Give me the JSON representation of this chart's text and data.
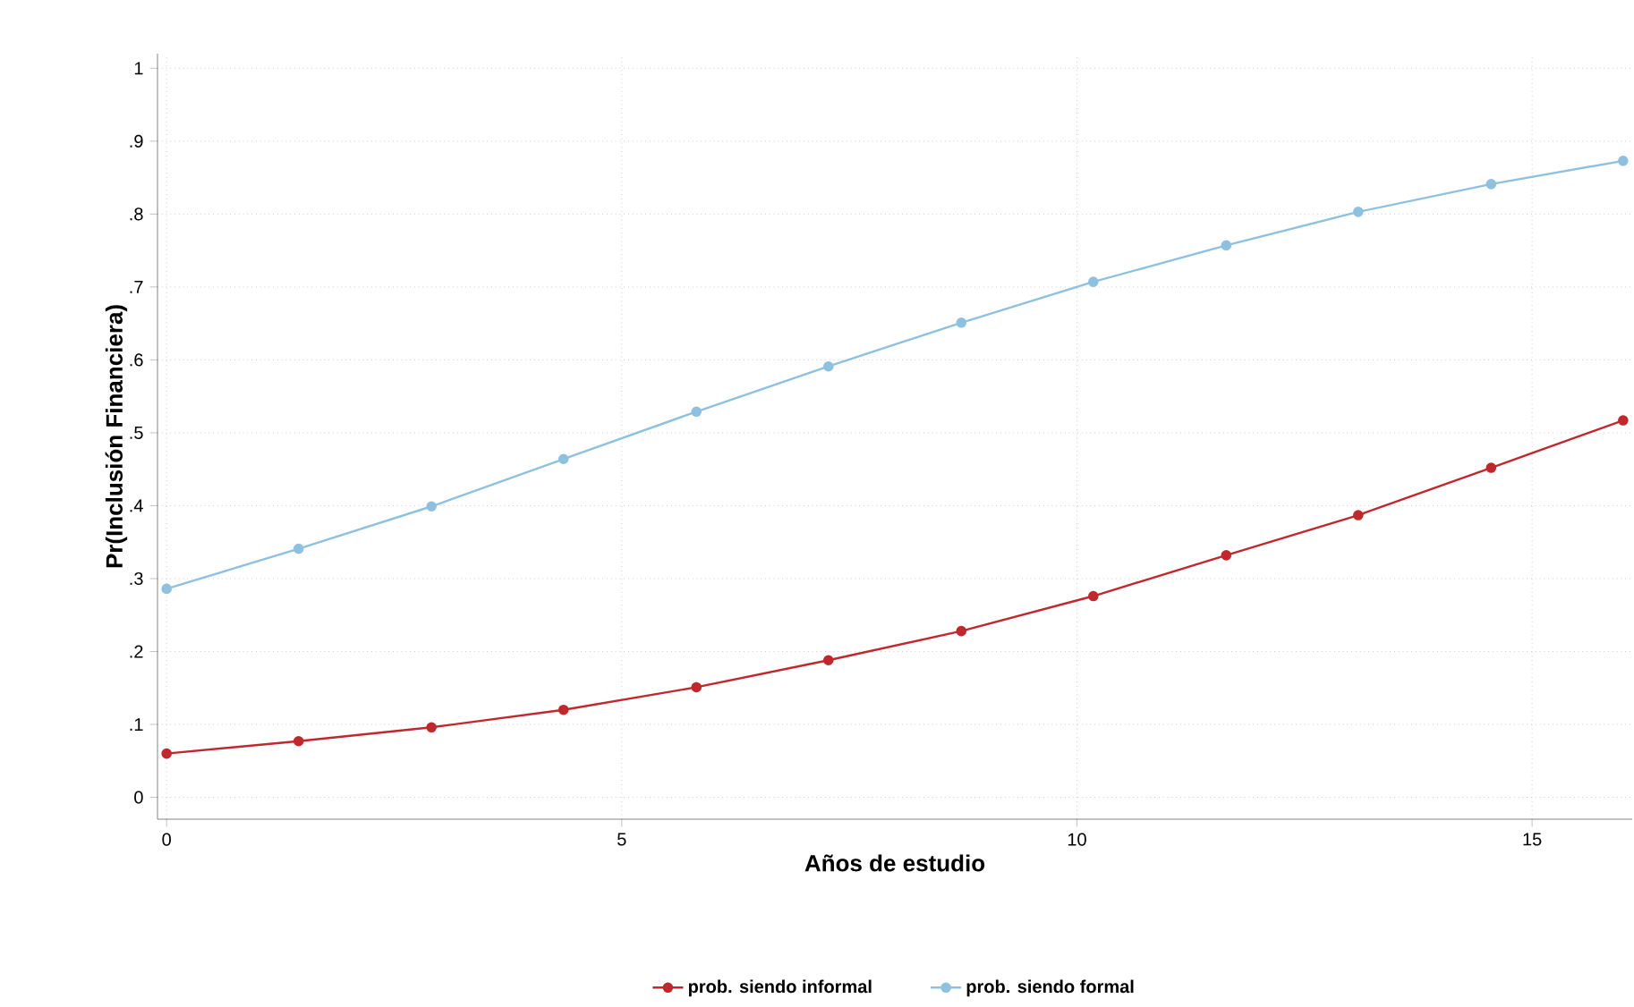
{
  "chart_data": {
    "type": "line",
    "xlabel": "Años de estudio",
    "ylabel": "Pr(Inclusión Financiera)",
    "x": [
      0,
      1.45,
      2.91,
      4.36,
      5.82,
      7.27,
      8.73,
      10.18,
      11.64,
      13.09,
      14.55,
      16
    ],
    "series": [
      {
        "name": "prob. siendo informal",
        "color": "#c0282d",
        "values": [
          0.06,
          0.077,
          0.096,
          0.12,
          0.151,
          0.188,
          0.228,
          0.276,
          0.332,
          0.387,
          0.452,
          0.517
        ]
      },
      {
        "name": "prob. siendo formal",
        "color": "#8ec1e0",
        "values": [
          0.286,
          0.341,
          0.399,
          0.464,
          0.529,
          0.591,
          0.651,
          0.707,
          0.757,
          0.803,
          0.841,
          0.873
        ]
      }
    ],
    "xlim": [
      -0.1,
      16.1
    ],
    "ylim": [
      -0.03,
      1.02
    ],
    "xticks": [
      0,
      5,
      10,
      15
    ],
    "yticks": [
      0,
      {
        "value": 0.1,
        "label": ".1"
      },
      {
        "value": 0.2,
        "label": ".2"
      },
      {
        "value": 0.3,
        "label": ".3"
      },
      {
        "value": 0.4,
        "label": ".4"
      },
      {
        "value": 0.5,
        "label": ".5"
      },
      {
        "value": 0.6,
        "label": ".6"
      },
      {
        "value": 0.7,
        "label": ".7"
      },
      {
        "value": 0.8,
        "label": ".8"
      },
      {
        "value": 0.9,
        "label": ".9"
      },
      1
    ],
    "grid": true,
    "legend": "bottom",
    "marker": "circle",
    "line_style": "solid"
  }
}
